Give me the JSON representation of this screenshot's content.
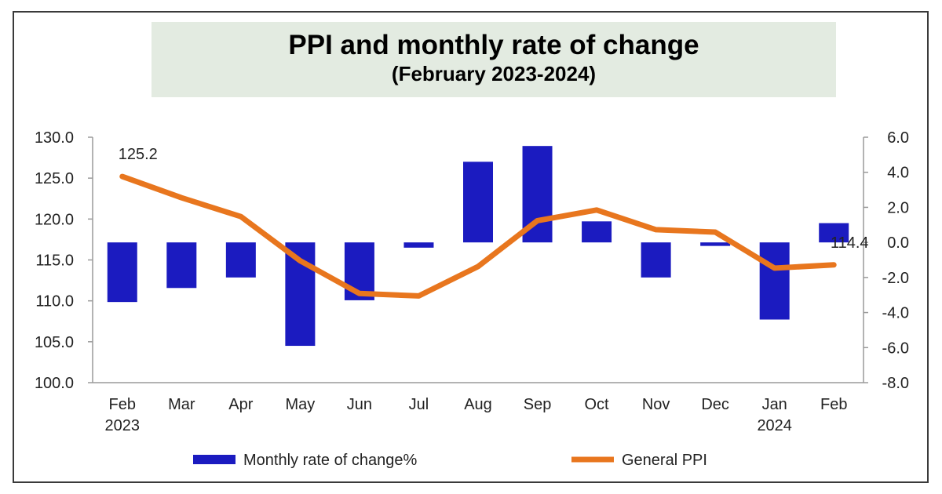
{
  "chart_data": {
    "type": "bar+line",
    "title": "PPI and monthly rate of change",
    "subtitle": "(February 2023-2024)",
    "categories": [
      {
        "month": "Feb",
        "year": "2023"
      },
      {
        "month": "Mar",
        "year": ""
      },
      {
        "month": "Apr",
        "year": ""
      },
      {
        "month": "May",
        "year": ""
      },
      {
        "month": "Jun",
        "year": ""
      },
      {
        "month": "Jul",
        "year": ""
      },
      {
        "month": "Aug",
        "year": ""
      },
      {
        "month": "Sep",
        "year": ""
      },
      {
        "month": "Oct",
        "year": ""
      },
      {
        "month": "Nov",
        "year": ""
      },
      {
        "month": "Dec",
        "year": ""
      },
      {
        "month": "Jan",
        "year": "2024"
      },
      {
        "month": "Feb",
        "year": ""
      }
    ],
    "series": [
      {
        "name": "Monthly rate of change%",
        "type": "bar",
        "axis": "right",
        "color": "#1b1bc0",
        "values": [
          -3.4,
          -2.6,
          -2.0,
          -5.9,
          -3.3,
          -0.3,
          4.6,
          5.5,
          1.2,
          -2.0,
          -0.2,
          -4.4,
          1.1
        ]
      },
      {
        "name": "General  PPI",
        "type": "line",
        "axis": "left",
        "color": "#e8761e",
        "values": [
          125.2,
          122.6,
          120.3,
          114.9,
          110.9,
          110.6,
          114.2,
          119.8,
          121.1,
          118.7,
          118.4,
          114.0,
          114.4
        ]
      }
    ],
    "data_labels": [
      {
        "series": 1,
        "index": 0,
        "text": "125.2"
      },
      {
        "series": 1,
        "index": 12,
        "text": "114.4"
      }
    ],
    "y_left": {
      "min": 100,
      "max": 130,
      "step": 5,
      "ticks": [
        "100.0",
        "105.0",
        "110.0",
        "115.0",
        "120.0",
        "125.0",
        "130.0"
      ]
    },
    "y_right": {
      "min": -8,
      "max": 6,
      "step": 2,
      "ticks": [
        "-8.0",
        "-6.0",
        "-4.0",
        "-2.0",
        "0.0",
        "2.0",
        "4.0",
        "6.0"
      ]
    },
    "legend": {
      "placement": "bottom"
    },
    "grid": false
  }
}
